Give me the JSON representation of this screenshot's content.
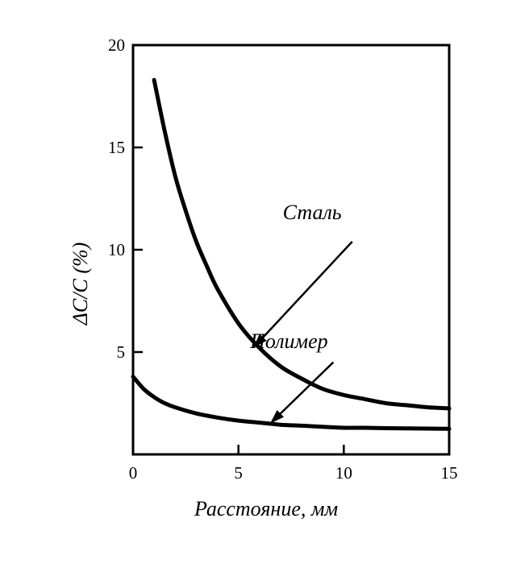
{
  "chart_data": {
    "type": "line",
    "title": "",
    "xlabel": "Расстояние, мм",
    "ylabel": "ΔC/C (%)",
    "xlim": [
      0,
      15
    ],
    "ylim": [
      0,
      20
    ],
    "x_ticks": [
      0,
      5,
      10,
      15
    ],
    "x_tick_labels": [
      "0",
      "5",
      "10",
      "15"
    ],
    "y_ticks": [
      5,
      10,
      15,
      20
    ],
    "y_tick_labels": [
      "5",
      "10",
      "15",
      "20"
    ],
    "grid": false,
    "legend": "none",
    "series": [
      {
        "name": "Сталь",
        "x": [
          1,
          1.5,
          2,
          2.5,
          3,
          3.5,
          4,
          5,
          6,
          7,
          8,
          9,
          10,
          11,
          12,
          13,
          14,
          15
        ],
        "y": [
          18.3,
          15.8,
          13.6,
          11.9,
          10.4,
          9.2,
          8.1,
          6.4,
          5.2,
          4.3,
          3.7,
          3.2,
          2.9,
          2.7,
          2.5,
          2.4,
          2.3,
          2.25
        ]
      },
      {
        "name": "Полимер",
        "x": [
          0,
          0.5,
          1,
          1.5,
          2,
          3,
          4,
          5,
          6,
          7,
          8,
          9,
          10,
          11,
          12,
          13,
          14,
          15
        ],
        "y": [
          3.8,
          3.2,
          2.8,
          2.5,
          2.3,
          2.0,
          1.8,
          1.65,
          1.55,
          1.45,
          1.4,
          1.35,
          1.3,
          1.3,
          1.28,
          1.27,
          1.26,
          1.25
        ]
      }
    ],
    "annotations": [
      {
        "text": "Сталь",
        "label_x": 8.5,
        "label_y": 11.5,
        "arrow_from": [
          10.4,
          10.4
        ],
        "arrow_to": [
          5.7,
          5.2
        ]
      },
      {
        "text": "Полимер",
        "label_x": 7.4,
        "label_y": 5.2,
        "arrow_from": [
          9.5,
          4.5
        ],
        "arrow_to": [
          6.5,
          1.5
        ]
      }
    ]
  }
}
